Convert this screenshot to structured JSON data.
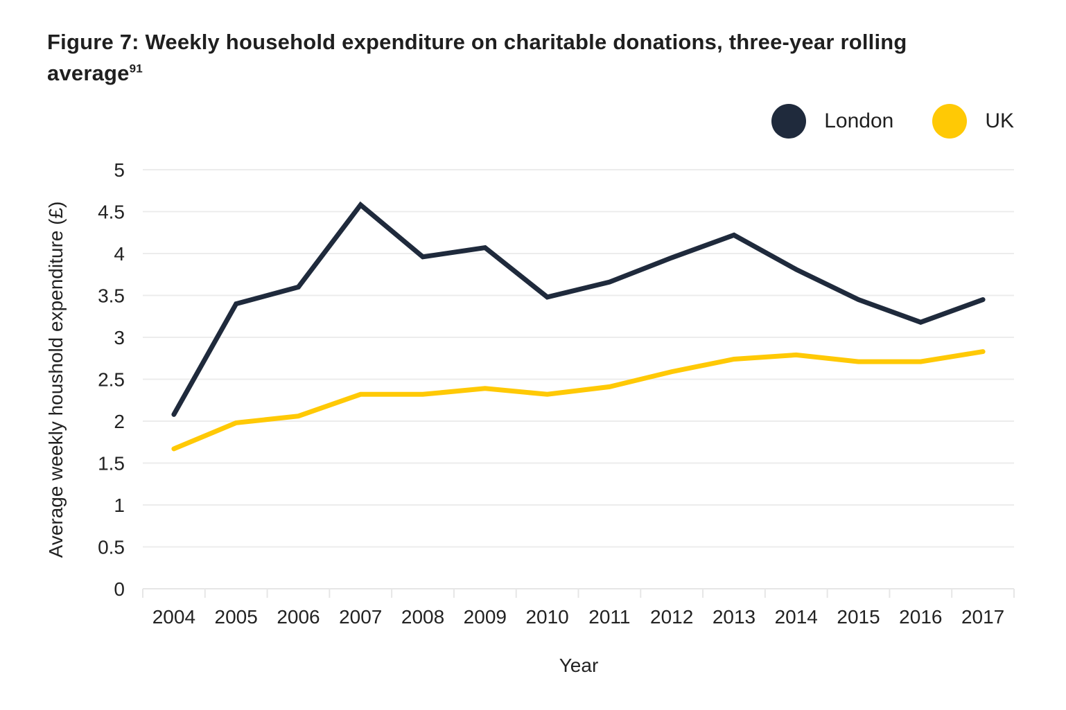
{
  "figure": {
    "title": "Figure 7: Weekly household expenditure on charitable donations, three-year rolling average",
    "footnote_ref": "91"
  },
  "chart_data": {
    "type": "line",
    "title": "Figure 7: Weekly household expenditure on charitable donations, three-year rolling average",
    "xlabel": "Year",
    "ylabel": "Average weekly houshold expenditure (£)",
    "x": [
      "2004",
      "2005",
      "2006",
      "2007",
      "2008",
      "2009",
      "2010",
      "2011",
      "2012",
      "2013",
      "2014",
      "2015",
      "2016",
      "2017"
    ],
    "ylim": [
      0,
      5
    ],
    "yticks": [
      0,
      0.5,
      1,
      1.5,
      2,
      2.5,
      3,
      3.5,
      4,
      4.5,
      5
    ],
    "ytick_labels": [
      "0",
      "0.5",
      "1",
      "1.5",
      "2",
      "2.5",
      "3",
      "3.5",
      "4",
      "4.5",
      "5"
    ],
    "grid": true,
    "legend_position": "top-right",
    "series": [
      {
        "name": "London",
        "color": "#1f2a3c",
        "values": [
          2.08,
          3.4,
          3.6,
          4.58,
          3.96,
          4.07,
          3.48,
          3.66,
          3.95,
          4.22,
          3.81,
          3.45,
          3.18,
          3.45
        ]
      },
      {
        "name": "UK",
        "color": "#ffc905",
        "values": [
          1.67,
          1.98,
          2.06,
          2.32,
          2.32,
          2.39,
          2.32,
          2.41,
          2.59,
          2.74,
          2.79,
          2.71,
          2.71,
          2.83
        ]
      }
    ]
  }
}
